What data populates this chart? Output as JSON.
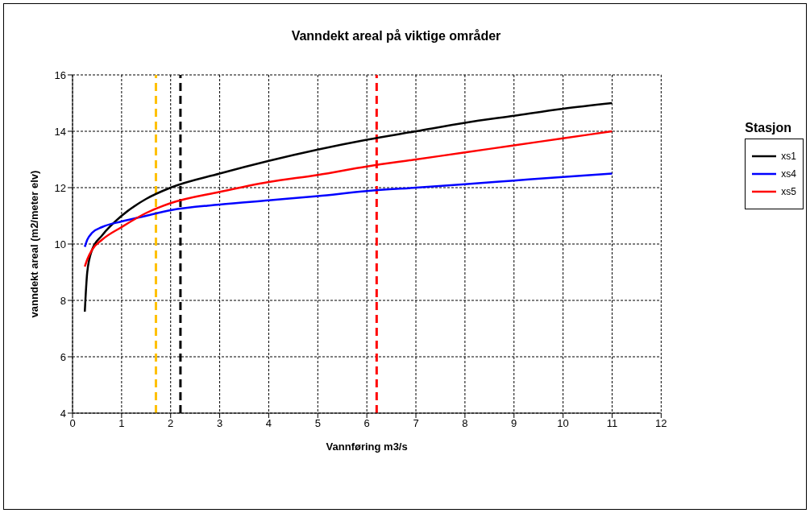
{
  "chart_data": {
    "type": "line",
    "title": "Vanndekt areal på viktige områder",
    "xlabel": "Vannføring m3/s",
    "ylabel": "vanndekt areal (m2/meter elv)",
    "legend_title": "Stasjon",
    "legend": "right",
    "grid": true,
    "marker": "none",
    "line_style": "solid",
    "xlim": [
      0,
      12
    ],
    "xticks": [
      0,
      1,
      2,
      3,
      4,
      5,
      6,
      7,
      8,
      9,
      10,
      11,
      12
    ],
    "ylim": [
      4,
      16
    ],
    "yticks": [
      4,
      6,
      8,
      10,
      12,
      14,
      16
    ],
    "x": [
      0.25,
      0.3,
      0.4,
      0.6,
      1,
      1.5,
      2,
      3,
      4,
      5,
      6,
      7,
      8,
      9,
      10,
      11
    ],
    "series": [
      {
        "name": "xs1",
        "color": "#000000",
        "values": [
          7.6,
          9.0,
          9.8,
          10.3,
          11.0,
          11.6,
          12.0,
          12.5,
          12.95,
          13.35,
          13.7,
          14.0,
          14.3,
          14.55,
          14.8,
          15.0
        ]
      },
      {
        "name": "xs4",
        "color": "#0000ff",
        "values": [
          9.9,
          10.15,
          10.4,
          10.6,
          10.8,
          11.0,
          11.2,
          11.4,
          11.55,
          11.7,
          11.88,
          12.0,
          12.12,
          12.25,
          12.38,
          12.5
        ]
      },
      {
        "name": "xs5",
        "color": "#ff0000",
        "values": [
          9.2,
          9.45,
          9.8,
          10.15,
          10.6,
          11.1,
          11.45,
          11.85,
          12.2,
          12.45,
          12.75,
          13.0,
          13.25,
          13.5,
          13.75,
          14.0
        ]
      }
    ],
    "ref_lines": [
      {
        "axis": "x",
        "value": 1.7,
        "color": "#ffc000",
        "line_style": "dashed"
      },
      {
        "axis": "x",
        "value": 2.2,
        "color": "#000000",
        "line_style": "dashed"
      },
      {
        "axis": "x",
        "value": 6.2,
        "color": "#ff0000",
        "line_style": "dashed"
      }
    ]
  }
}
